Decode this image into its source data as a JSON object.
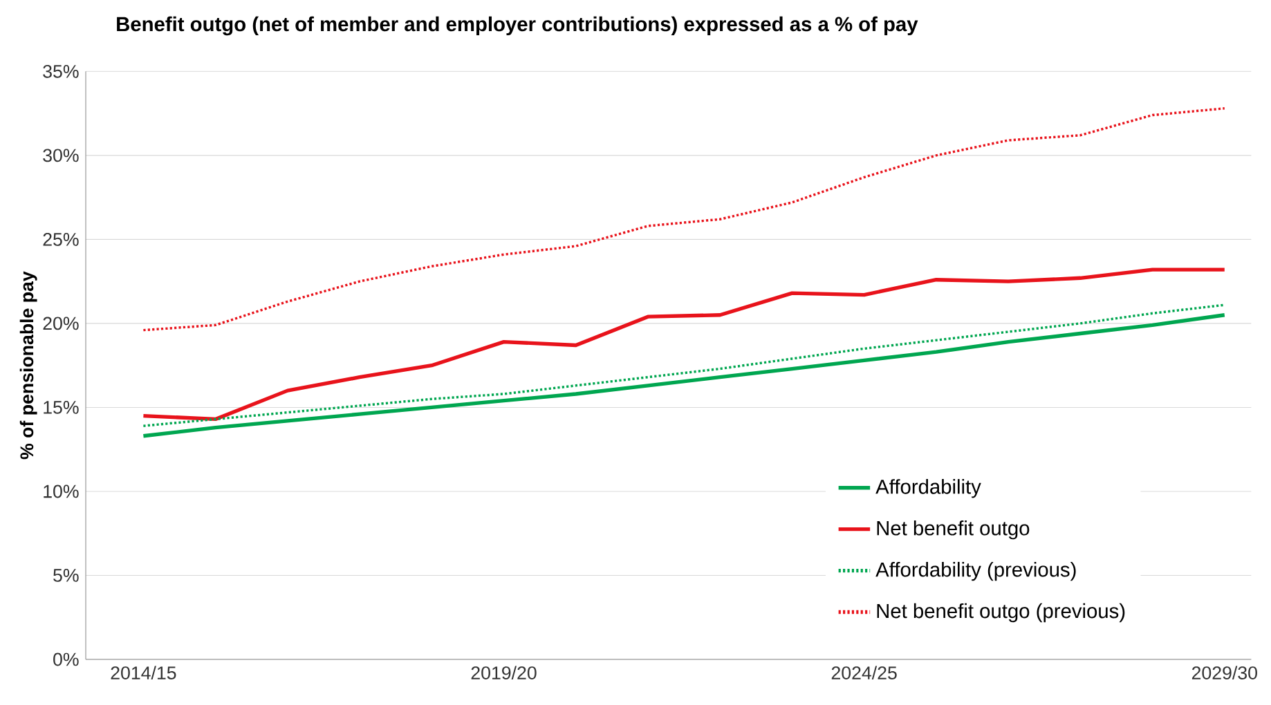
{
  "chart_data": {
    "type": "line",
    "title": "Benefit outgo (net of member and employer contributions) expressed as a % of pay",
    "ylabel": "% of pensionable pay",
    "categories": [
      "2014/15",
      null,
      null,
      null,
      null,
      "2019/20",
      null,
      null,
      null,
      null,
      "2024/25",
      null,
      null,
      null,
      null,
      "2029/30"
    ],
    "series": [
      {
        "name": "Affordability",
        "color": "#00a650",
        "line_style": "solid",
        "values": [
          13.3,
          13.8,
          14.2,
          14.6,
          15.0,
          15.4,
          15.8,
          16.3,
          16.8,
          17.3,
          17.8,
          18.3,
          18.9,
          19.4,
          19.9,
          20.5
        ]
      },
      {
        "name": "Net benefit outgo",
        "color": "#e8131b",
        "line_style": "solid",
        "values": [
          14.5,
          14.3,
          16.0,
          16.8,
          17.5,
          18.9,
          18.7,
          20.4,
          20.5,
          21.8,
          21.7,
          22.6,
          22.5,
          22.7,
          23.2,
          23.2
        ]
      },
      {
        "name": "Affordability (previous)",
        "color": "#00a650",
        "line_style": "dotted",
        "values": [
          13.9,
          14.3,
          14.7,
          15.1,
          15.5,
          15.8,
          16.3,
          16.8,
          17.3,
          17.9,
          18.5,
          19.0,
          19.5,
          20.0,
          20.6,
          21.1
        ]
      },
      {
        "name": "Net benefit outgo (previous)",
        "color": "#e8131b",
        "line_style": "dotted",
        "values": [
          19.6,
          19.9,
          21.3,
          22.5,
          23.4,
          24.1,
          24.6,
          25.8,
          26.2,
          27.2,
          28.7,
          30.0,
          30.9,
          31.2,
          32.4,
          32.8
        ]
      }
    ],
    "ylim": [
      0,
      35
    ],
    "yticks": [
      {
        "value": 0,
        "label": "0%"
      },
      {
        "value": 5,
        "label": "5%"
      },
      {
        "value": 10,
        "label": "10%"
      },
      {
        "value": 15,
        "label": "15%"
      },
      {
        "value": 20,
        "label": "20%"
      },
      {
        "value": 25,
        "label": "25%"
      },
      {
        "value": 30,
        "label": "30%"
      },
      {
        "value": 35,
        "label": "35%"
      }
    ],
    "grid": "y",
    "legend": "bottom right",
    "marker": "none"
  }
}
